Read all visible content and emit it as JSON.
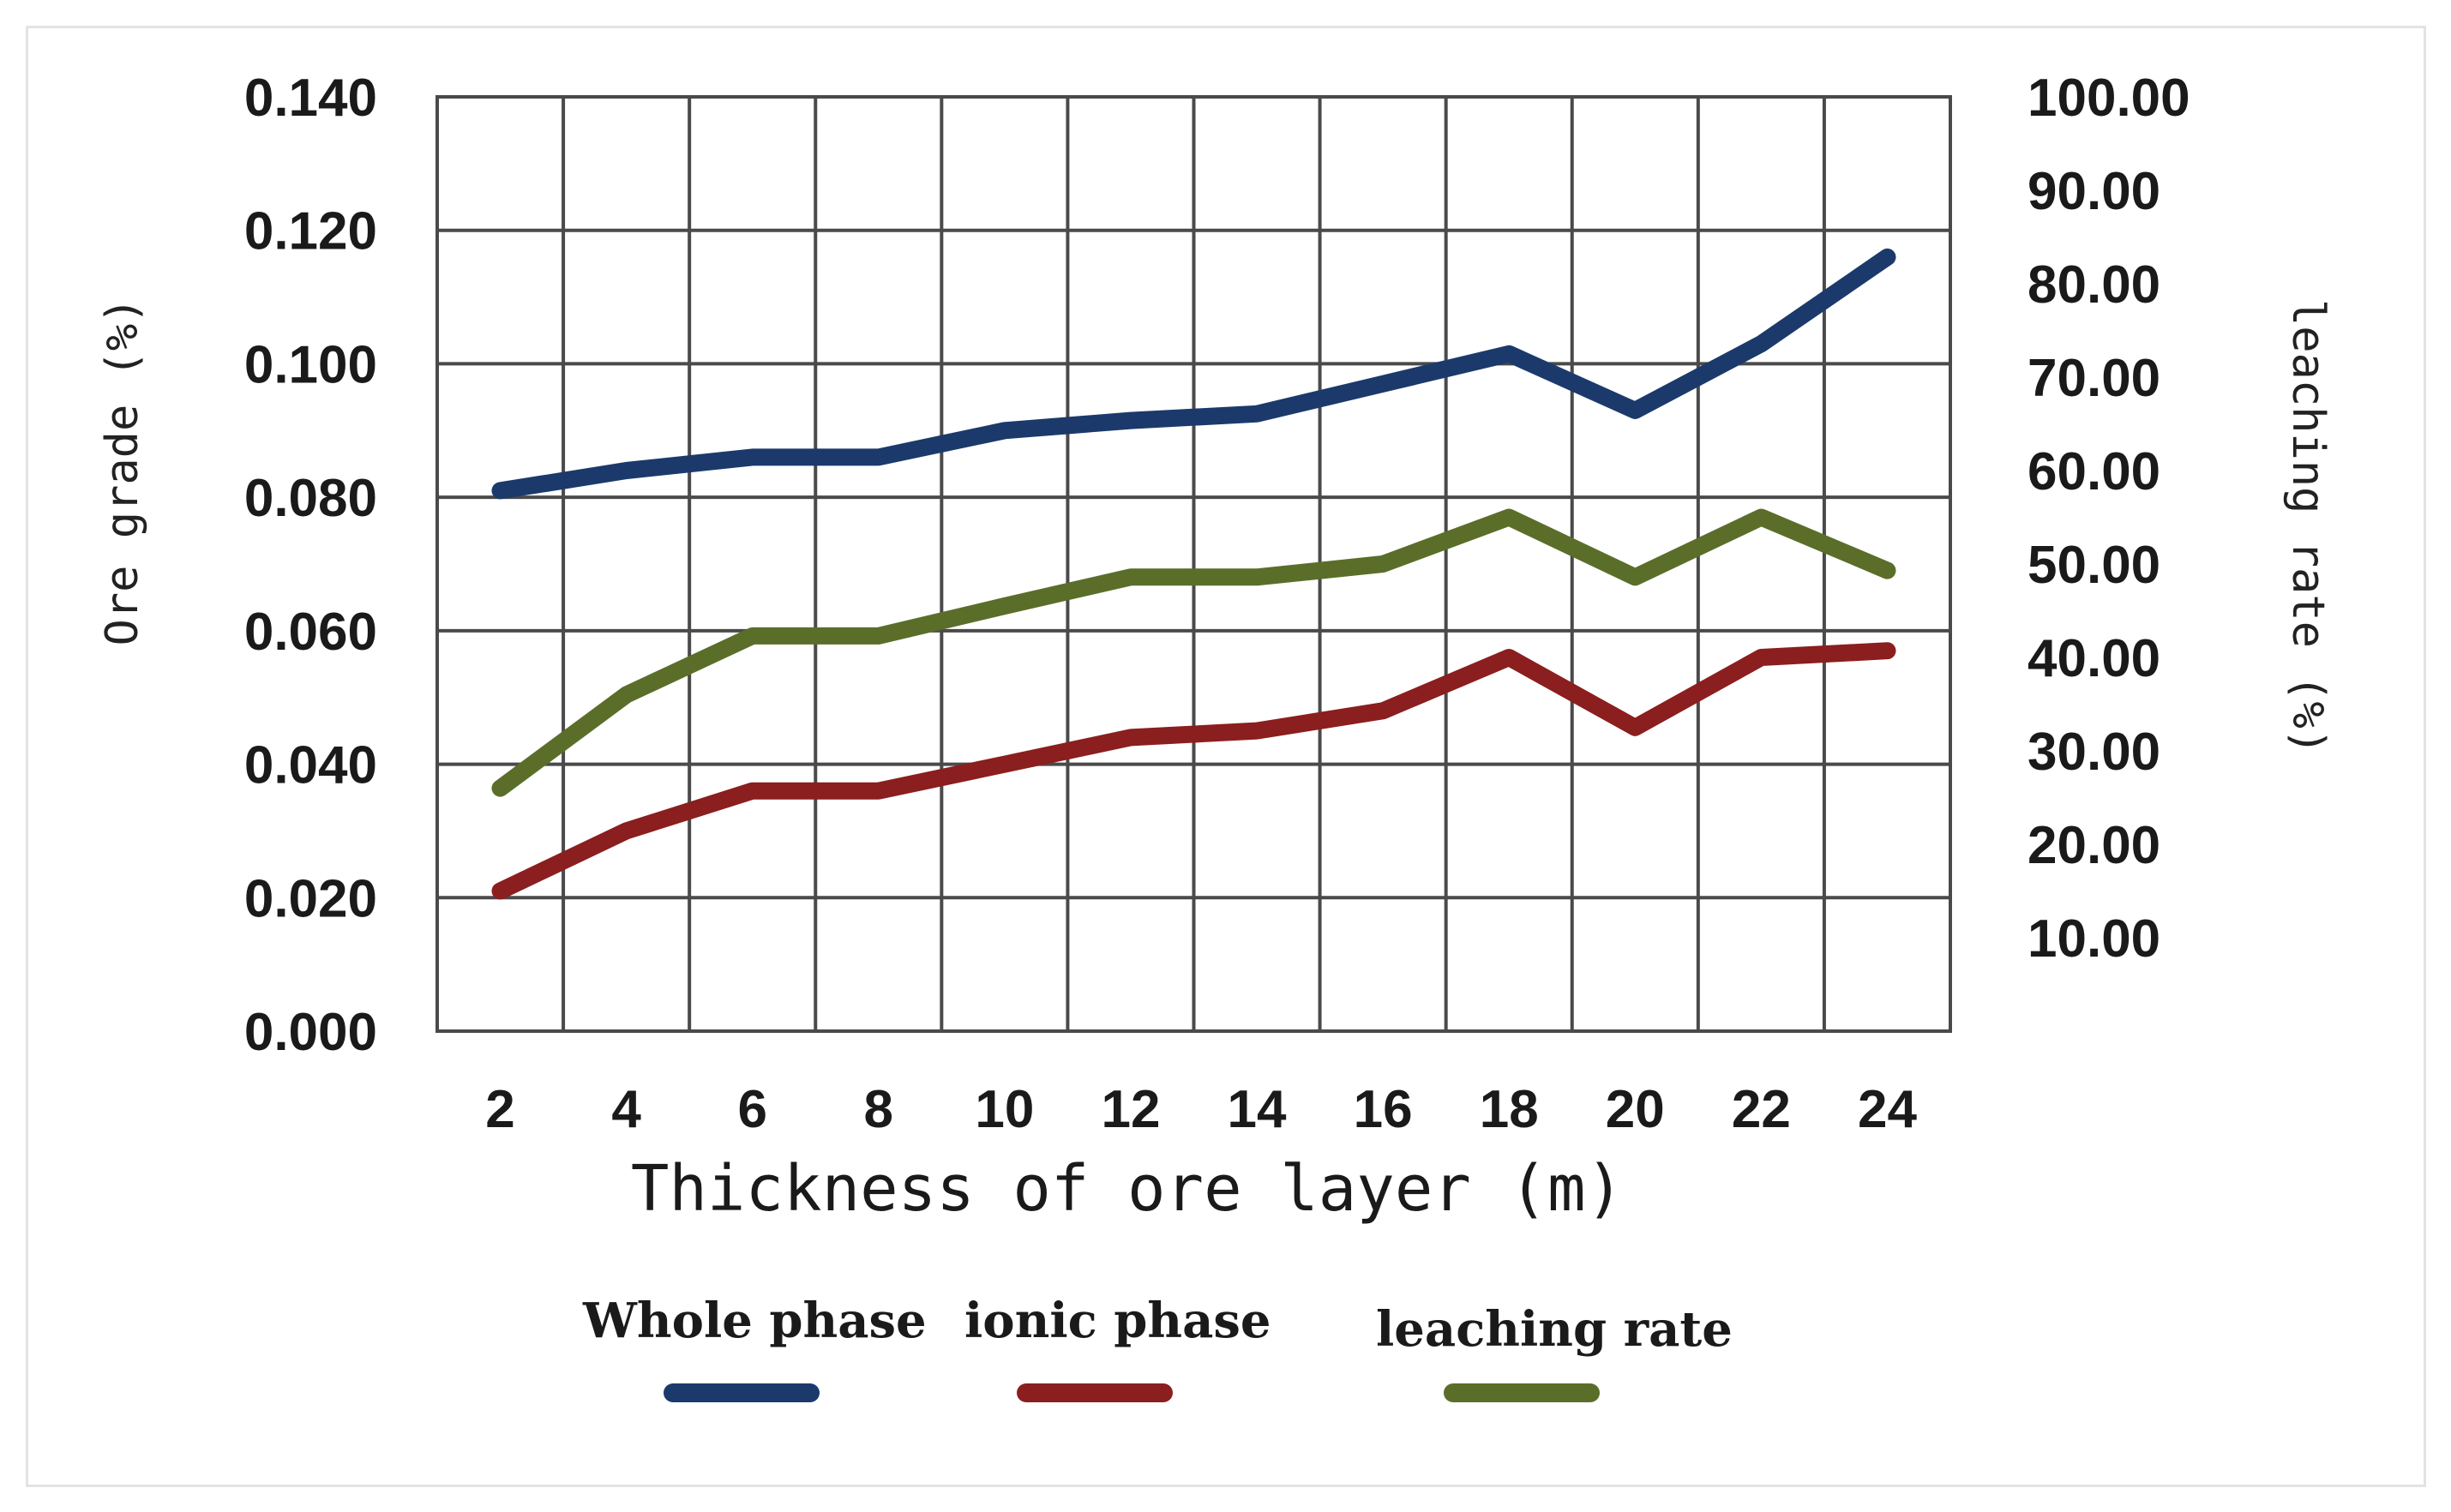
{
  "chart_data": {
    "type": "line",
    "title": "",
    "xlabel": "Thickness of ore layer (m)",
    "ylabel": "Ore grade (%)",
    "y2label": "leaching rate (%)",
    "categories": [
      "2",
      "4",
      "6",
      "8",
      "10",
      "12",
      "14",
      "16",
      "18",
      "20",
      "22",
      "24"
    ],
    "ylim": [
      0,
      0.14
    ],
    "y_ticks": [
      "0.000",
      "0.020",
      "0.040",
      "0.060",
      "0.080",
      "0.100",
      "0.120",
      "0.140"
    ],
    "y2lim": [
      0,
      100
    ],
    "y2_ticks": [
      "10.00",
      "20.00",
      "30.00",
      "40.00",
      "50.00",
      "60.00",
      "70.00",
      "80.00",
      "90.00",
      "100.00"
    ],
    "grid": true,
    "legend_position": "bottom",
    "series": [
      {
        "name": "Whole phase",
        "axis": "left",
        "color": "#1b3a6b",
        "values": [
          0.081,
          0.084,
          0.086,
          0.086,
          0.09,
          0.0915,
          0.0925,
          0.097,
          0.1015,
          0.093,
          0.103,
          0.116
        ]
      },
      {
        "name": "ionic phase",
        "axis": "left",
        "color": "#8b1e1e",
        "values": [
          0.021,
          0.03,
          0.036,
          0.036,
          0.04,
          0.044,
          0.045,
          0.048,
          0.056,
          0.0455,
          0.056,
          0.057
        ]
      },
      {
        "name": "leaching rate",
        "axis": "right",
        "color": "#5a6e2a",
        "values": [
          26.0,
          36.0,
          42.3,
          42.3,
          45.5,
          48.6,
          48.6,
          50.0,
          55.0,
          48.6,
          55.0,
          49.3
        ]
      }
    ]
  }
}
